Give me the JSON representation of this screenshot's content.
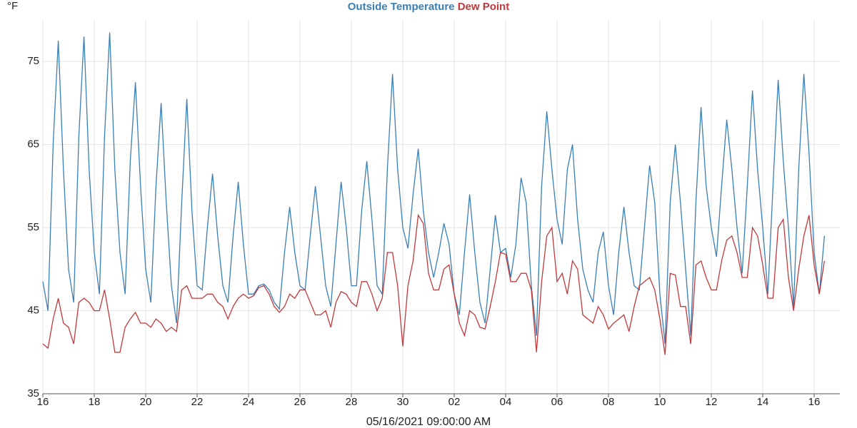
{
  "chart_data": {
    "type": "line",
    "y_unit": "°F",
    "x_label": "05/16/2021 09:00:00 AM",
    "xlim": [
      0,
      31
    ],
    "xticks": [
      {
        "value": 0,
        "label": "16"
      },
      {
        "value": 2,
        "label": "18"
      },
      {
        "value": 4,
        "label": "20"
      },
      {
        "value": 6,
        "label": "22"
      },
      {
        "value": 8,
        "label": "24"
      },
      {
        "value": 10,
        "label": "26"
      },
      {
        "value": 12,
        "label": "28"
      },
      {
        "value": 14,
        "label": "30"
      },
      {
        "value": 16,
        "label": "02"
      },
      {
        "value": 18,
        "label": "04"
      },
      {
        "value": 20,
        "label": "06"
      },
      {
        "value": 22,
        "label": "08"
      },
      {
        "value": 24,
        "label": "10"
      },
      {
        "value": 26,
        "label": "12"
      },
      {
        "value": 28,
        "label": "14"
      },
      {
        "value": 30,
        "label": "16"
      }
    ],
    "ylim": [
      35,
      80
    ],
    "yticks": [
      35,
      45,
      55,
      65,
      75
    ],
    "grid": true,
    "x": [
      0,
      0.2,
      0.4,
      0.6,
      0.8,
      1,
      1.2,
      1.4,
      1.6,
      1.8,
      2,
      2.2,
      2.4,
      2.6,
      2.8,
      3,
      3.2,
      3.4,
      3.6,
      3.8,
      4,
      4.2,
      4.4,
      4.6,
      4.8,
      5,
      5.2,
      5.4,
      5.6,
      5.8,
      6,
      6.2,
      6.4,
      6.6,
      6.8,
      7,
      7.2,
      7.4,
      7.6,
      7.8,
      8,
      8.2,
      8.4,
      8.6,
      8.8,
      9,
      9.2,
      9.4,
      9.6,
      9.8,
      10,
      10.2,
      10.4,
      10.6,
      10.8,
      11,
      11.2,
      11.4,
      11.6,
      11.8,
      12,
      12.2,
      12.4,
      12.6,
      12.8,
      13,
      13.2,
      13.4,
      13.6,
      13.8,
      14,
      14.2,
      14.4,
      14.6,
      14.8,
      15,
      15.2,
      15.4,
      15.6,
      15.8,
      16,
      16.2,
      16.4,
      16.6,
      16.8,
      17,
      17.2,
      17.4,
      17.6,
      17.8,
      18,
      18.2,
      18.4,
      18.6,
      18.8,
      19,
      19.2,
      19.4,
      19.6,
      19.8,
      20,
      20.2,
      20.4,
      20.6,
      20.8,
      21,
      21.2,
      21.4,
      21.6,
      21.8,
      22,
      22.2,
      22.4,
      22.6,
      22.8,
      23,
      23.2,
      23.4,
      23.6,
      23.8,
      24,
      24.2,
      24.4,
      24.6,
      24.8,
      25,
      25.2,
      25.4,
      25.6,
      25.8,
      26,
      26.2,
      26.4,
      26.6,
      26.8,
      27,
      27.2,
      27.4,
      27.6,
      27.8,
      28,
      28.2,
      28.4,
      28.6,
      28.8,
      29,
      29.2,
      29.4,
      29.6,
      29.8,
      30,
      30.2,
      30.4
    ],
    "series": [
      {
        "name": "Outside Temperature",
        "color": "#3a7fb5",
        "values": [
          48.5,
          45,
          65,
          77.5,
          62,
          50,
          46,
          66,
          78,
          62,
          52,
          47,
          66,
          78.5,
          62,
          52,
          47,
          63,
          72.5,
          60,
          50,
          46,
          60,
          70,
          58,
          48,
          43.5,
          58,
          70.5,
          57,
          48,
          47.5,
          55,
          61.5,
          54,
          48,
          46,
          54,
          60.5,
          53,
          47,
          47,
          48,
          48.2,
          47.5,
          46,
          45.2,
          52,
          57.5,
          52,
          48,
          47.5,
          54,
          60,
          54,
          48,
          45.5,
          53,
          60.5,
          55,
          48,
          48,
          57,
          63,
          56,
          48,
          47,
          62,
          73.5,
          62,
          55,
          52.5,
          59,
          64.5,
          57,
          52,
          49,
          52,
          55.5,
          53,
          47,
          44.5,
          52,
          59,
          52,
          46,
          43.5,
          50,
          56.5,
          52,
          52.5,
          49,
          53,
          61,
          58,
          48,
          42,
          60,
          69,
          62,
          56,
          53,
          62,
          65,
          56,
          50,
          47.5,
          46,
          52,
          54.5,
          48,
          44.5,
          52,
          57.5,
          52,
          48,
          47.5,
          55,
          62.5,
          58,
          47,
          41,
          58,
          65,
          58,
          50,
          42,
          58,
          69.5,
          60,
          55,
          51.5,
          60,
          68,
          62,
          55,
          49.5,
          60,
          71.5,
          62,
          55,
          47,
          60,
          72.8,
          63,
          55,
          45.5,
          62,
          73.5,
          64,
          52,
          47,
          54
        ]
      },
      {
        "name": "Dew Point",
        "color": "#c0393b",
        "values": [
          41,
          40.5,
          44,
          46.5,
          43.5,
          43,
          41,
          46,
          46.5,
          46,
          45,
          45,
          47.5,
          44,
          40,
          40,
          43,
          44,
          44.8,
          43.5,
          43.5,
          43,
          44,
          43.5,
          42.5,
          43,
          42.5,
          47.5,
          48,
          46.5,
          46.5,
          46.5,
          47,
          47,
          46,
          45.5,
          44,
          45.5,
          46.5,
          47,
          46.5,
          46.8,
          47.8,
          48,
          47,
          45.5,
          44.8,
          45.5,
          47,
          46.5,
          47.5,
          47.5,
          46,
          44.5,
          44.5,
          45,
          43,
          46,
          47.3,
          47,
          46,
          45.5,
          48.5,
          48.5,
          47,
          45,
          46.5,
          52,
          52,
          48,
          40.7,
          48,
          51,
          56.5,
          55.5,
          49.5,
          47.5,
          47.5,
          50,
          50.5,
          47,
          43.5,
          42,
          45,
          44.5,
          43,
          42.8,
          45.5,
          48.5,
          52,
          51.8,
          48.5,
          48.5,
          49.5,
          49.5,
          47.5,
          40,
          48.5,
          54,
          55,
          48.5,
          49.5,
          47,
          51,
          50,
          44.5,
          44,
          43.5,
          45.5,
          44.5,
          42.8,
          43.5,
          44,
          44.5,
          42.5,
          45.5,
          48,
          48.5,
          49,
          47.5,
          44,
          39.7,
          49.5,
          49.3,
          45.5,
          45.5,
          41,
          50.5,
          51,
          49,
          47.5,
          47.5,
          51,
          53.5,
          54,
          52,
          49,
          49,
          55,
          54,
          50.5,
          46.5,
          46.5,
          55,
          56,
          49,
          45,
          50,
          54,
          56.5,
          50.5,
          47,
          51
        ]
      }
    ]
  }
}
